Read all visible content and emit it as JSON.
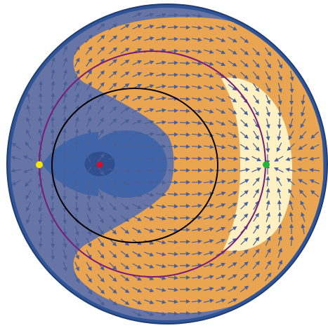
{
  "figure": {
    "kind": "phase-portrait-on-disk",
    "colors": {
      "background": "#ffffff",
      "disk_rim": "#2f5597",
      "disk_rim_dark": "#1f3d73",
      "region_outer_blue": "#6675a6",
      "region_orange": "#e9a552",
      "region_cream": "#fdf1c3",
      "region_inner_blue": "#3f64a8",
      "region_core_blue": "#2f4f8f",
      "flow_arrow": "#4a5f95",
      "orbit_purple": "#7a1a78",
      "orbit_black": "#000000",
      "point_red": "#d0102a",
      "point_yellow": "#f5e800",
      "point_green": "#22b53a"
    },
    "equilibria": [
      {
        "name": "center",
        "color_key": "point_red"
      },
      {
        "name": "left",
        "color_key": "point_yellow"
      },
      {
        "name": "right",
        "color_key": "point_green"
      }
    ],
    "curves": [
      {
        "name": "purple-orbit",
        "color_key": "orbit_purple"
      },
      {
        "name": "black-orbit",
        "color_key": "orbit_black"
      }
    ]
  }
}
